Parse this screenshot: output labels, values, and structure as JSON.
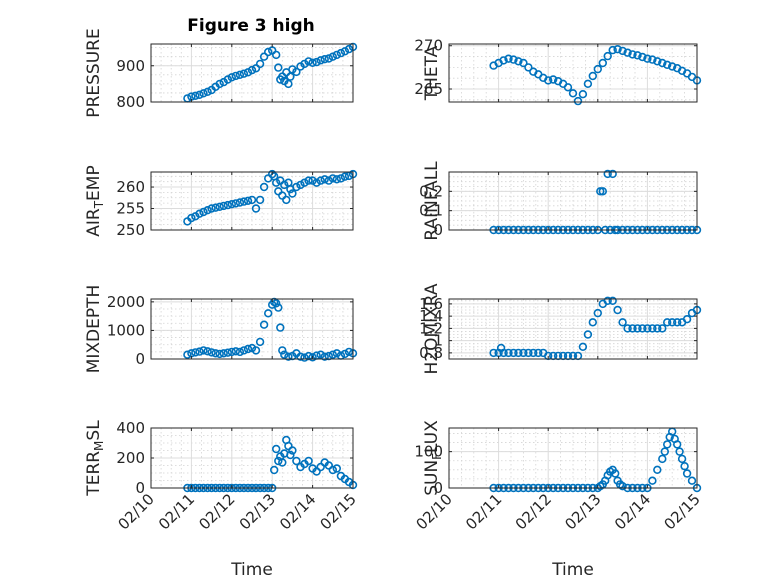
{
  "figure": {
    "title": "Figure 3 high",
    "accent_color": "#0072BD"
  },
  "chart_data": [
    {
      "type": "scatter",
      "title": "Figure 3 high",
      "ylabel": "PRESSURE",
      "xlim": [
        "02/10",
        "02/15"
      ],
      "ylim": [
        800,
        960
      ],
      "yticks": [
        800,
        900
      ],
      "grid": true,
      "minor_grid": true,
      "x": [
        10.9,
        11.0,
        11.1,
        11.2,
        11.3,
        11.4,
        11.5,
        11.6,
        11.7,
        11.8,
        11.9,
        12.0,
        12.1,
        12.2,
        12.3,
        12.4,
        12.5,
        12.6,
        12.7,
        12.8,
        12.9,
        13.0,
        13.1,
        13.15,
        13.2,
        13.25,
        13.3,
        13.35,
        13.4,
        13.45,
        13.5,
        13.6,
        13.7,
        13.8,
        13.9,
        14.0,
        14.1,
        14.2,
        14.3,
        14.4,
        14.5,
        14.6,
        14.7,
        14.8,
        14.9,
        15.0
      ],
      "y": [
        810,
        815,
        817,
        820,
        824,
        828,
        833,
        842,
        850,
        855,
        862,
        868,
        872,
        875,
        878,
        882,
        888,
        893,
        905,
        925,
        938,
        942,
        930,
        895,
        862,
        870,
        858,
        882,
        850,
        870,
        890,
        883,
        898,
        905,
        912,
        908,
        910,
        915,
        918,
        920,
        925,
        930,
        935,
        940,
        946,
        952
      ]
    },
    {
      "type": "scatter",
      "ylabel": "THETA",
      "xlim": [
        "02/10",
        "02/15"
      ],
      "ylim": [
        263.5,
        270.2
      ],
      "yticks": [
        265,
        270
      ],
      "grid": true,
      "minor_grid": true,
      "x": [
        10.9,
        11.0,
        11.1,
        11.2,
        11.3,
        11.4,
        11.5,
        11.6,
        11.7,
        11.8,
        11.9,
        12.0,
        12.1,
        12.2,
        12.3,
        12.4,
        12.5,
        12.6,
        12.7,
        12.8,
        12.9,
        13.0,
        13.1,
        13.2,
        13.3,
        13.4,
        13.5,
        13.6,
        13.7,
        13.8,
        13.9,
        14.0,
        14.1,
        14.2,
        14.3,
        14.4,
        14.5,
        14.6,
        14.7,
        14.8,
        14.9,
        15.0
      ],
      "y": [
        267.7,
        268.0,
        268.3,
        268.5,
        268.4,
        268.2,
        268.0,
        267.5,
        267.0,
        266.7,
        266.3,
        266.0,
        266.1,
        265.9,
        265.6,
        265.2,
        264.5,
        263.6,
        264.4,
        265.6,
        266.5,
        267.3,
        268.0,
        268.8,
        269.5,
        269.6,
        269.4,
        269.2,
        269.0,
        268.9,
        268.7,
        268.5,
        268.4,
        268.2,
        268.0,
        267.8,
        267.6,
        267.4,
        267.1,
        266.8,
        266.4,
        266.0
      ]
    },
    {
      "type": "scatter",
      "ylabel": "AIR_TEMP",
      "xlim": [
        "02/10",
        "02/15"
      ],
      "ylim": [
        250,
        263.5
      ],
      "yticks": [
        250,
        255,
        260
      ],
      "grid": true,
      "minor_grid": true,
      "x": [
        10.9,
        11.0,
        11.1,
        11.2,
        11.3,
        11.4,
        11.5,
        11.6,
        11.7,
        11.8,
        11.9,
        12.0,
        12.1,
        12.2,
        12.3,
        12.4,
        12.5,
        12.6,
        12.7,
        12.8,
        12.9,
        13.0,
        13.05,
        13.1,
        13.15,
        13.2,
        13.25,
        13.3,
        13.35,
        13.4,
        13.45,
        13.5,
        13.6,
        13.7,
        13.8,
        13.9,
        14.0,
        14.1,
        14.2,
        14.3,
        14.4,
        14.5,
        14.6,
        14.7,
        14.8,
        14.9,
        15.0
      ],
      "y": [
        252.0,
        252.8,
        253.2,
        253.8,
        254.2,
        254.6,
        255.0,
        255.2,
        255.4,
        255.6,
        255.8,
        256.0,
        256.2,
        256.4,
        256.6,
        256.8,
        257.0,
        255.0,
        257.0,
        260.0,
        262.0,
        263.0,
        262.5,
        261.0,
        259.0,
        261.5,
        258.0,
        260.5,
        257.0,
        261.0,
        259.5,
        258.5,
        260.0,
        260.5,
        261.0,
        261.5,
        261.5,
        261.0,
        261.5,
        261.8,
        261.5,
        262.0,
        261.8,
        262.0,
        262.4,
        262.6,
        263.0
      ]
    },
    {
      "type": "scatter",
      "ylabel": "RAINFALL",
      "xlim": [
        "02/10",
        "02/15"
      ],
      "ylim": [
        0,
        0.3
      ],
      "yticks": [
        0,
        0.1,
        0.2
      ],
      "grid": true,
      "minor_grid": true,
      "x": [
        10.9,
        11.0,
        11.1,
        11.2,
        11.3,
        11.4,
        11.5,
        11.6,
        11.7,
        11.8,
        11.9,
        12.0,
        12.1,
        12.2,
        12.3,
        12.4,
        12.5,
        12.6,
        12.7,
        12.8,
        12.9,
        13.0,
        13.05,
        13.1,
        13.15,
        13.2,
        13.25,
        13.3,
        13.35,
        13.4,
        13.5,
        13.6,
        13.7,
        13.8,
        13.9,
        14.0,
        14.1,
        14.2,
        14.3,
        14.4,
        14.5,
        14.6,
        14.7,
        14.8,
        14.9,
        15.0
      ],
      "y": [
        0,
        0,
        0,
        0,
        0,
        0,
        0,
        0,
        0,
        0,
        0,
        0,
        0,
        0,
        0,
        0,
        0,
        0,
        0,
        0,
        0,
        0,
        0.2,
        0.2,
        0,
        0.29,
        0,
        0.29,
        0,
        0,
        0,
        0,
        0,
        0,
        0,
        0,
        0,
        0,
        0,
        0,
        0,
        0,
        0,
        0,
        0,
        0
      ]
    },
    {
      "type": "scatter",
      "ylabel": "MIXDEPTH",
      "xlim": [
        "02/10",
        "02/15"
      ],
      "ylim": [
        0,
        2100
      ],
      "yticks": [
        0,
        1000,
        2000
      ],
      "grid": true,
      "minor_grid": true,
      "x": [
        10.9,
        11.0,
        11.1,
        11.2,
        11.3,
        11.4,
        11.5,
        11.6,
        11.7,
        11.8,
        11.9,
        12.0,
        12.1,
        12.2,
        12.3,
        12.4,
        12.5,
        12.6,
        12.7,
        12.8,
        12.9,
        13.0,
        13.05,
        13.1,
        13.15,
        13.2,
        13.25,
        13.3,
        13.4,
        13.5,
        13.6,
        13.7,
        13.8,
        13.9,
        14.0,
        14.1,
        14.2,
        14.3,
        14.4,
        14.5,
        14.6,
        14.7,
        14.8,
        14.9,
        15.0
      ],
      "y": [
        150,
        200,
        230,
        260,
        300,
        270,
        230,
        200,
        180,
        200,
        220,
        250,
        270,
        250,
        300,
        350,
        380,
        300,
        600,
        1200,
        1600,
        1900,
        2000,
        1950,
        1800,
        1100,
        300,
        150,
        80,
        100,
        200,
        80,
        50,
        100,
        60,
        120,
        150,
        80,
        100,
        150,
        200,
        120,
        180,
        250,
        200
      ]
    },
    {
      "type": "scatter",
      "ylabel": "H2OMIXRA",
      "xlim": [
        "02/10",
        "02/15"
      ],
      "ylim": [
        0.7,
        1.68
      ],
      "yticks": [
        0.8,
        1,
        1.2,
        1.4,
        1.6
      ],
      "grid": true,
      "minor_grid": true,
      "x": [
        10.9,
        11.0,
        11.05,
        11.1,
        11.2,
        11.3,
        11.4,
        11.5,
        11.6,
        11.7,
        11.8,
        11.9,
        12.0,
        12.1,
        12.2,
        12.3,
        12.4,
        12.5,
        12.6,
        12.7,
        12.8,
        12.9,
        13.0,
        13.1,
        13.2,
        13.3,
        13.4,
        13.5,
        13.6,
        13.7,
        13.8,
        13.9,
        14.0,
        14.1,
        14.2,
        14.3,
        14.4,
        14.5,
        14.6,
        14.7,
        14.8,
        14.9,
        15.0
      ],
      "y": [
        0.8,
        0.8,
        0.88,
        0.8,
        0.8,
        0.8,
        0.8,
        0.8,
        0.8,
        0.8,
        0.8,
        0.8,
        0.75,
        0.75,
        0.75,
        0.75,
        0.75,
        0.75,
        0.75,
        0.9,
        1.1,
        1.3,
        1.45,
        1.6,
        1.65,
        1.65,
        1.5,
        1.3,
        1.2,
        1.2,
        1.2,
        1.2,
        1.2,
        1.2,
        1.2,
        1.2,
        1.3,
        1.3,
        1.3,
        1.3,
        1.35,
        1.45,
        1.5
      ]
    },
    {
      "type": "scatter",
      "ylabel": "TERR_MSL",
      "xlim": [
        "02/10",
        "02/15"
      ],
      "ylim": [
        0,
        400
      ],
      "yticks": [
        0,
        200,
        400
      ],
      "xticks": [
        "02/10",
        "02/11",
        "02/12",
        "02/13",
        "02/14",
        "02/15"
      ],
      "xlabel": "Time",
      "grid": true,
      "minor_grid": true,
      "x": [
        10.9,
        11.0,
        11.1,
        11.2,
        11.3,
        11.4,
        11.5,
        11.6,
        11.7,
        11.8,
        11.9,
        12.0,
        12.1,
        12.2,
        12.3,
        12.4,
        12.5,
        12.6,
        12.7,
        12.8,
        12.9,
        13.0,
        13.05,
        13.1,
        13.15,
        13.2,
        13.25,
        13.3,
        13.35,
        13.4,
        13.45,
        13.5,
        13.6,
        13.7,
        13.8,
        13.9,
        14.0,
        14.1,
        14.2,
        14.3,
        14.4,
        14.5,
        14.6,
        14.7,
        14.8,
        14.9,
        15.0
      ],
      "y": [
        0,
        0,
        0,
        0,
        0,
        0,
        0,
        0,
        0,
        0,
        0,
        0,
        0,
        0,
        0,
        0,
        0,
        0,
        0,
        0,
        0,
        0,
        120,
        260,
        180,
        210,
        170,
        230,
        320,
        280,
        220,
        250,
        180,
        140,
        160,
        180,
        130,
        110,
        140,
        170,
        150,
        120,
        130,
        80,
        60,
        40,
        20
      ]
    },
    {
      "type": "scatter",
      "ylabel": "SUN_FLUX",
      "xlim": [
        "02/10",
        "02/15"
      ],
      "ylim": [
        0,
        165
      ],
      "yticks": [
        0,
        100
      ],
      "xticks": [
        "02/10",
        "02/11",
        "02/12",
        "02/13",
        "02/14",
        "02/15"
      ],
      "xlabel": "Time",
      "grid": true,
      "minor_grid": true,
      "x": [
        10.9,
        11.0,
        11.1,
        11.2,
        11.3,
        11.4,
        11.5,
        11.6,
        11.7,
        11.8,
        11.9,
        12.0,
        12.1,
        12.2,
        12.3,
        12.4,
        12.5,
        12.6,
        12.7,
        12.8,
        12.9,
        13.0,
        13.05,
        13.1,
        13.15,
        13.2,
        13.25,
        13.3,
        13.35,
        13.4,
        13.45,
        13.5,
        13.6,
        13.7,
        13.8,
        13.9,
        14.0,
        14.1,
        14.2,
        14.3,
        14.35,
        14.4,
        14.45,
        14.5,
        14.55,
        14.6,
        14.65,
        14.7,
        14.75,
        14.8,
        14.9,
        15.0
      ],
      "y": [
        0,
        0,
        0,
        0,
        0,
        0,
        0,
        0,
        0,
        0,
        0,
        0,
        0,
        0,
        0,
        0,
        0,
        0,
        0,
        0,
        0,
        0,
        5,
        10,
        20,
        35,
        45,
        50,
        40,
        20,
        10,
        5,
        0,
        0,
        0,
        0,
        0,
        20,
        50,
        80,
        100,
        120,
        140,
        155,
        135,
        120,
        100,
        80,
        60,
        40,
        20,
        0
      ]
    }
  ]
}
